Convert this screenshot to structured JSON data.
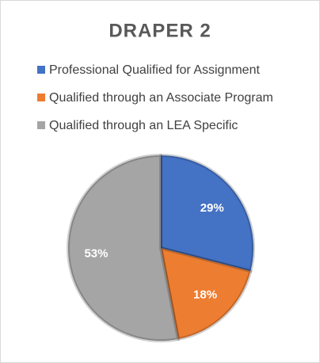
{
  "chart_data": {
    "type": "pie",
    "title": "DRAPER 2",
    "categories": [
      "Professional Qualified for Assignment",
      "Qualified through an Associate Program",
      "Qualified through an LEA Specific"
    ],
    "values": [
      29,
      18,
      53
    ],
    "value_labels": [
      "29%",
      "18%",
      "53%"
    ],
    "colors": [
      "#4472c4",
      "#ed7d31",
      "#a5a5a5"
    ],
    "legend": "top"
  }
}
